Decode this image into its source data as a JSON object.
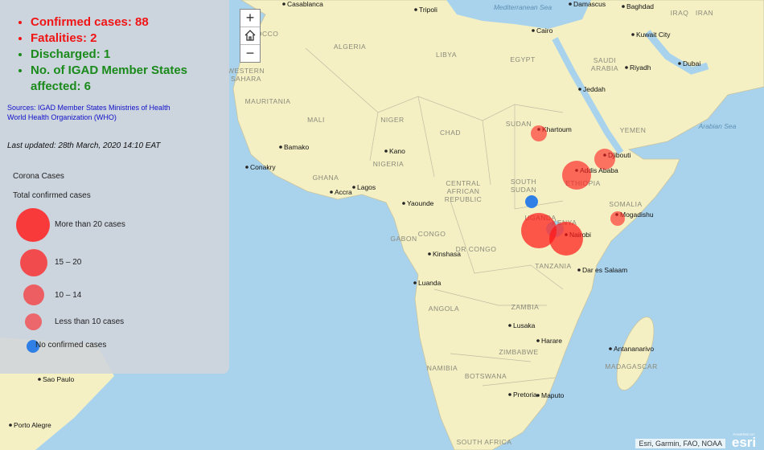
{
  "summary": [
    "Confirmed cases: 88",
    "Fatalities: 2",
    "Discharged: 1",
    "No. of IGAD Member States affected: 6"
  ],
  "sources": [
    "Sources: IGAD Member States Ministries of Health",
    "World Health Organization (WHO)"
  ],
  "last_updated": "Last updated: 28th March, 2020 14:10 EAT",
  "legend": {
    "title": "Corona Cases",
    "subtitle": "Total confirmed cases",
    "items": [
      "More than 20 cases",
      "15 – 20",
      "10 – 14",
      "Less than 10 cases",
      "No confirmed cases"
    ]
  },
  "zoom": {
    "in": "+",
    "out": "−"
  },
  "map": {
    "seas": [
      "Mediterranean Sea",
      "Arabian Sea"
    ],
    "countries": [
      [
        "MOROCCO"
      ],
      [
        "ALGERIA"
      ],
      [
        "LIBYA"
      ],
      [
        "EGYPT"
      ],
      [
        "WESTERN",
        "SAHARA"
      ],
      [
        "MAURITANIA"
      ],
      [
        "MALI"
      ],
      [
        "NIGER"
      ],
      [
        "CHAD"
      ],
      [
        "SUDAN"
      ],
      [
        "NIGERIA"
      ],
      [
        "GHANA"
      ],
      [
        "CENTRAL",
        "AFRICAN",
        "REPUBLIC"
      ],
      [
        "SOUTH",
        "SUDAN"
      ],
      [
        "ETHIOPIA"
      ],
      [
        "SOMALIA"
      ],
      [
        "GABON"
      ],
      [
        "CONGO"
      ],
      [
        "DR CONGO"
      ],
      [
        "TANZANIA"
      ],
      [
        "ANGOLA"
      ],
      [
        "ZAMBIA"
      ],
      [
        "NAMIBIA"
      ],
      [
        "BOTSWANA"
      ],
      [
        "ZIMBABWE"
      ],
      [
        "MADAGASCAR"
      ],
      [
        "SAUDI",
        "ARABIA"
      ],
      [
        "YEMEN"
      ],
      [
        "IRAQ"
      ],
      [
        "IRAN"
      ],
      [
        "SOUTH AFRICA"
      ],
      [
        "KENYA"
      ],
      [
        "UGANDA"
      ]
    ],
    "cities": [
      "Casablanca",
      "Tripoli",
      "Damascus",
      "Baghdad",
      "Cairo",
      "Kuwait City",
      "Riyadh",
      "Dubai",
      "Jeddah",
      "Khartoum",
      "Djibouti",
      "Addis Ababa",
      "Bamako",
      "Kano",
      "Conakry",
      "Accra",
      "Lagos",
      "Yaounde",
      "Mogadishu",
      "Nairobi",
      "Kinshasa",
      "Dar es Salaam",
      "Luanda",
      "Lusaka",
      "Harare",
      "Antananarivo",
      "Pretoria",
      "Maputo",
      "Sao Paulo",
      "Porto Alegre"
    ]
  },
  "attribution": "Esri, Garmin, FAO, NOAA",
  "logo": {
    "caption": "POWERED BY",
    "name": "esri"
  }
}
